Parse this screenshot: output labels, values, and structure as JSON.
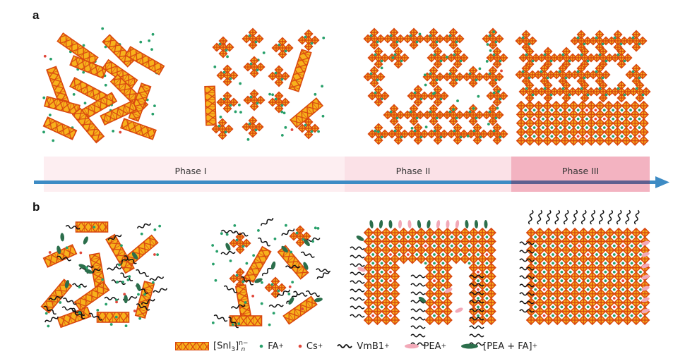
{
  "panels": {
    "a": "a",
    "b": "b"
  },
  "phases": [
    {
      "label": "Phase I",
      "color": "#fdeef1"
    },
    {
      "label": "Phase II",
      "color": "#fbe1e7"
    },
    {
      "label": "Phase III",
      "color": "#f3b3c1"
    }
  ],
  "arrow_color": "#3d8bc4",
  "arrow_overlap_color": "#5f5f8f",
  "legend": {
    "sni3": {
      "base": "[SnI",
      "sub3": "3",
      "close": "]",
      "sup": "n−",
      "subn": "n"
    },
    "fa": {
      "label": "FA",
      "sup": "+",
      "color": "#27a06a"
    },
    "cs": {
      "label": "Cs",
      "sup": "+",
      "color": "#e0473a"
    },
    "vmb1": {
      "label": "VmB1",
      "sup": "+",
      "color": "#111111"
    },
    "pea": {
      "label": "PEA",
      "sup": "+",
      "color": "#f2a9b8"
    },
    "pea_fa": {
      "label": "[PEA + FA]",
      "sup": "+",
      "color": "#2b6e4b"
    }
  },
  "colors": {
    "octahedron_edge": "#d9480f",
    "octahedron_fill": "#f7b21c"
  }
}
